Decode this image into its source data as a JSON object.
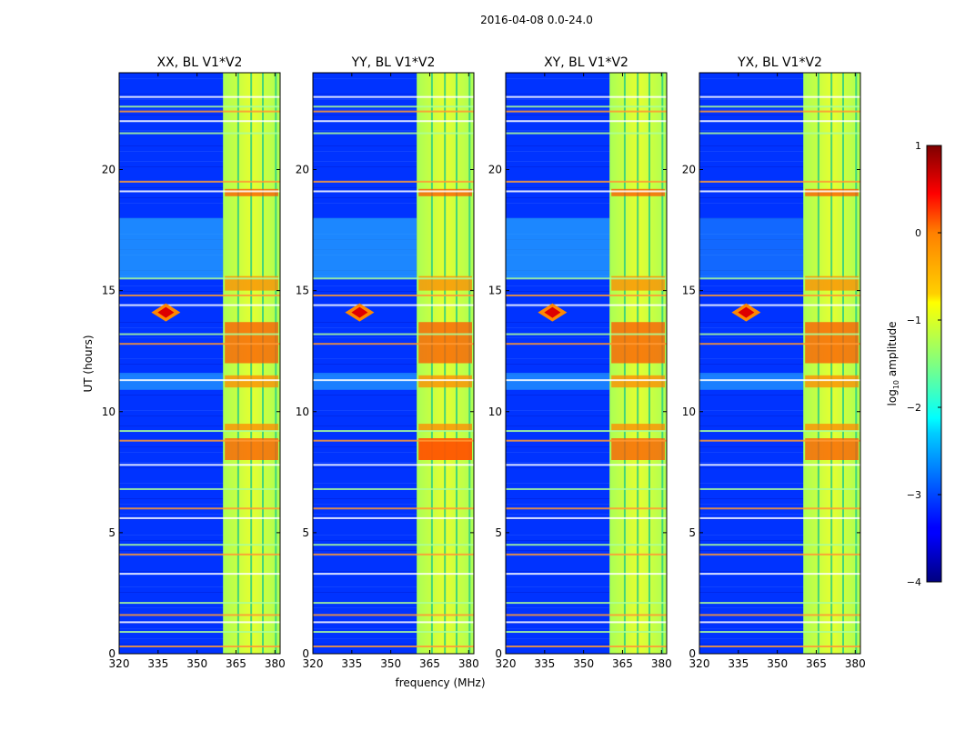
{
  "chart_data": {
    "type": "heatmap",
    "title": "2016-04-08 0.0-24.0",
    "xlabel": "frequency (MHz)",
    "ylabel": "UT (hours)",
    "xlim": [
      320,
      382
    ],
    "ylim": [
      0,
      24
    ],
    "x_ticks": [
      "320",
      "335",
      "350",
      "365",
      "380"
    ],
    "x_tick_values": [
      320,
      335,
      350,
      365,
      380
    ],
    "y_ticks": [
      "0",
      "5",
      "10",
      "15",
      "20"
    ],
    "y_tick_values": [
      0,
      5,
      10,
      15,
      20
    ],
    "panels": [
      {
        "title": "XX, BL V1*V2",
        "id": "xx"
      },
      {
        "title": "YY, BL V1*V2",
        "id": "yy"
      },
      {
        "title": "XY, BL V1*V2",
        "id": "xy"
      },
      {
        "title": "YX, BL V1*V2",
        "id": "yx"
      }
    ],
    "colorbar": {
      "label": "log10 amplitude",
      "min": -4,
      "max": 1,
      "ticks": [
        "1",
        "0",
        "−1",
        "−2",
        "−3",
        "−4"
      ],
      "tick_values": [
        1,
        0,
        -1,
        -2,
        -3,
        -4
      ]
    },
    "strong_band_MHz": [
      360,
      382
    ],
    "rfi_lines_hours": [
      0.3,
      0.9,
      1.3,
      1.6,
      2.1,
      3.3,
      4.1,
      4.5,
      5.6,
      6.0,
      6.8,
      7.8,
      8.8,
      9.2,
      11.3,
      12.8,
      13.2,
      14.4,
      14.8,
      15.5,
      19.1,
      19.5,
      21.5,
      22.0,
      22.4,
      22.6,
      23.0
    ],
    "hot_spot": {
      "freq_MHz": 338,
      "ut_hours": 14.1
    }
  },
  "colors": {
    "background": "#0033ff",
    "band": "#ccff44",
    "hot": "#dd0000"
  }
}
